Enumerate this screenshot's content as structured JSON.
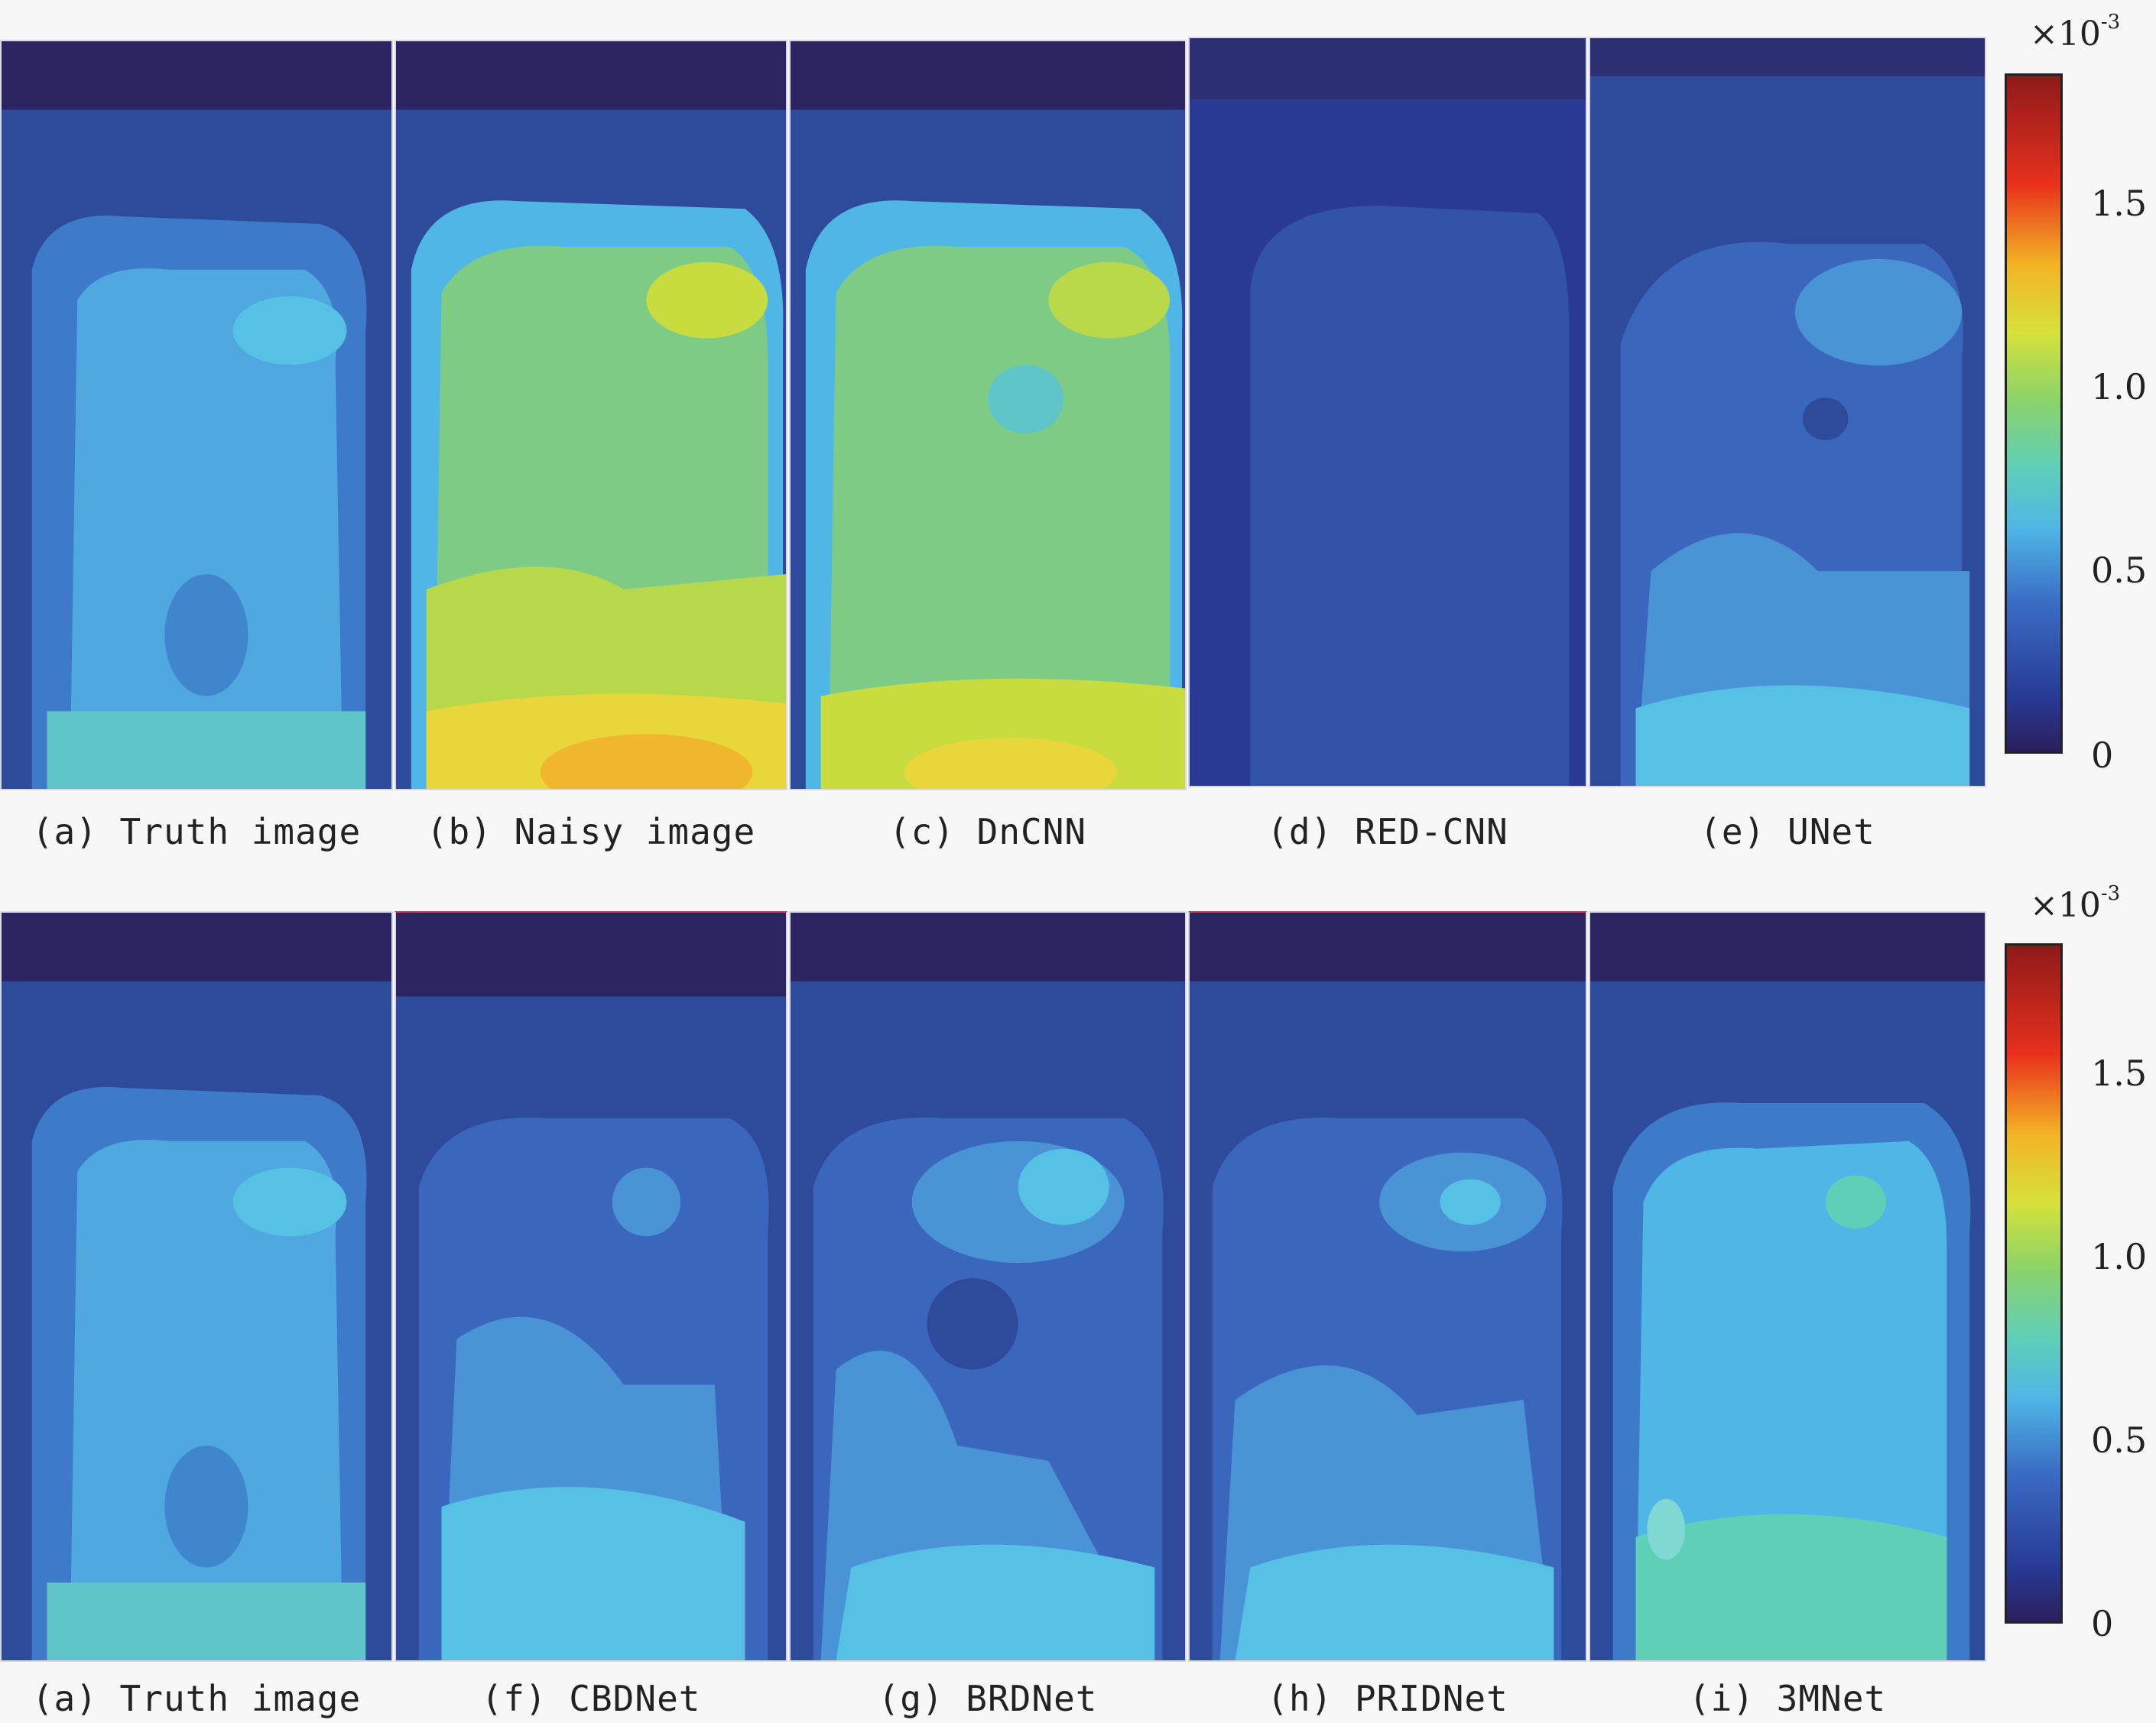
{
  "row1": {
    "captions": [
      "(a) Truth image",
      "(b) Naisy image",
      "(c) DnCNN",
      "(d) RED-CNN",
      "(e) UNet"
    ]
  },
  "row2": {
    "captions": [
      "(a) Truth image",
      "(f) CBDNet",
      "(g) BRDNet",
      "(h) PRIDNet",
      "(i) 3MNet"
    ]
  },
  "colorbar": {
    "multiplier_base": "×10",
    "multiplier_exponent": "-3",
    "ticks": [
      "1.5",
      "1.0",
      "0.5",
      "0"
    ],
    "range": [
      0,
      1.85
    ],
    "colormap": "jet",
    "colors": [
      "#2b1f5e",
      "#283a94",
      "#3a6cc4",
      "#4fb6e6",
      "#5fcfb8",
      "#8bd36a",
      "#d6e13a",
      "#f3b425",
      "#e8531c",
      "#8e1a1a"
    ]
  },
  "panels_row1": [
    {
      "name": "truth",
      "level": 0.55
    },
    {
      "name": "noisy",
      "level": 1.1
    },
    {
      "name": "dncnn",
      "level": 1.0
    },
    {
      "name": "redcnn",
      "level": 0.2
    },
    {
      "name": "unet",
      "level": 0.45
    }
  ],
  "panels_row2": [
    {
      "name": "truth",
      "level": 0.55
    },
    {
      "name": "cbdnet",
      "level": 0.45
    },
    {
      "name": "brdnet",
      "level": 0.45
    },
    {
      "name": "pridnet",
      "level": 0.45
    },
    {
      "name": "3mnet",
      "level": 0.6
    }
  ]
}
